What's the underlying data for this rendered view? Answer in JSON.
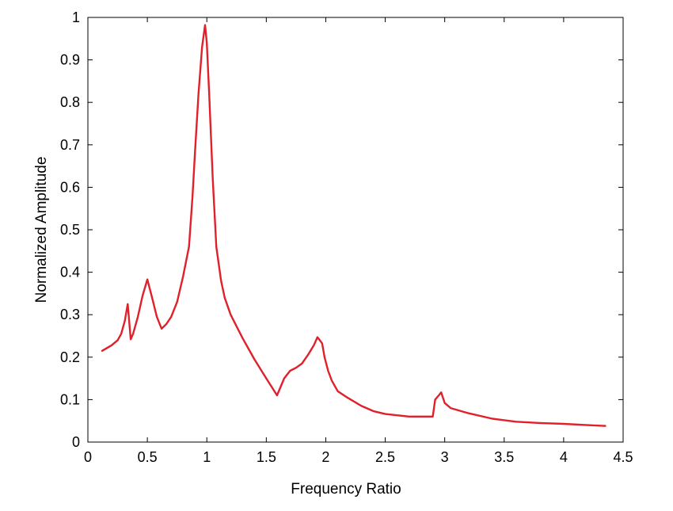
{
  "chart_data": {
    "type": "line",
    "title": "",
    "xlabel": "Frequency Ratio",
    "ylabel": "Normalized Amplitude",
    "xlim": [
      0,
      4.5
    ],
    "ylim": [
      0,
      1
    ],
    "xticks": [
      0,
      0.5,
      1,
      1.5,
      2,
      2.5,
      3,
      3.5,
      4,
      4.5
    ],
    "xtick_labels": [
      "0",
      "0.5",
      "1",
      "1.5",
      "2",
      "2.5",
      "3",
      "3.5",
      "4",
      "4.5"
    ],
    "yticks": [
      0,
      0.1,
      0.2,
      0.3,
      0.4,
      0.5,
      0.6,
      0.7,
      0.8,
      0.9,
      1
    ],
    "ytick_labels": [
      "0",
      "0.1",
      "0.2",
      "0.3",
      "0.4",
      "0.5",
      "0.6",
      "0.7",
      "0.8",
      "0.9",
      "1"
    ],
    "grid": false,
    "legend": "none",
    "series": [
      {
        "color": "#e0202a",
        "x": [
          0.12,
          0.2,
          0.25,
          0.28,
          0.31,
          0.335,
          0.36,
          0.38,
          0.42,
          0.46,
          0.5,
          0.54,
          0.58,
          0.62,
          0.66,
          0.7,
          0.75,
          0.8,
          0.85,
          0.88,
          0.9,
          0.93,
          0.96,
          0.985,
          1.0,
          1.02,
          1.05,
          1.08,
          1.12,
          1.15,
          1.2,
          1.3,
          1.4,
          1.5,
          1.59,
          1.65,
          1.7,
          1.75,
          1.8,
          1.85,
          1.9,
          1.93,
          1.95,
          1.97,
          1.99,
          2.02,
          2.05,
          2.1,
          2.18,
          2.3,
          2.4,
          2.5,
          2.6,
          2.7,
          2.8,
          2.9,
          2.92,
          2.95,
          2.97,
          3.0,
          3.05,
          3.2,
          3.4,
          3.6,
          3.8,
          4.0,
          4.2,
          4.35
        ],
        "y": [
          0.215,
          0.228,
          0.24,
          0.255,
          0.285,
          0.325,
          0.242,
          0.255,
          0.295,
          0.345,
          0.383,
          0.34,
          0.295,
          0.267,
          0.278,
          0.295,
          0.33,
          0.39,
          0.46,
          0.58,
          0.68,
          0.82,
          0.93,
          0.982,
          0.94,
          0.82,
          0.62,
          0.46,
          0.38,
          0.34,
          0.3,
          0.245,
          0.195,
          0.15,
          0.11,
          0.15,
          0.168,
          0.175,
          0.185,
          0.205,
          0.228,
          0.247,
          0.24,
          0.232,
          0.2,
          0.168,
          0.145,
          0.12,
          0.105,
          0.085,
          0.073,
          0.066,
          0.063,
          0.06,
          0.06,
          0.06,
          0.1,
          0.11,
          0.117,
          0.092,
          0.08,
          0.068,
          0.055,
          0.048,
          0.045,
          0.043,
          0.04,
          0.038
        ]
      }
    ]
  }
}
